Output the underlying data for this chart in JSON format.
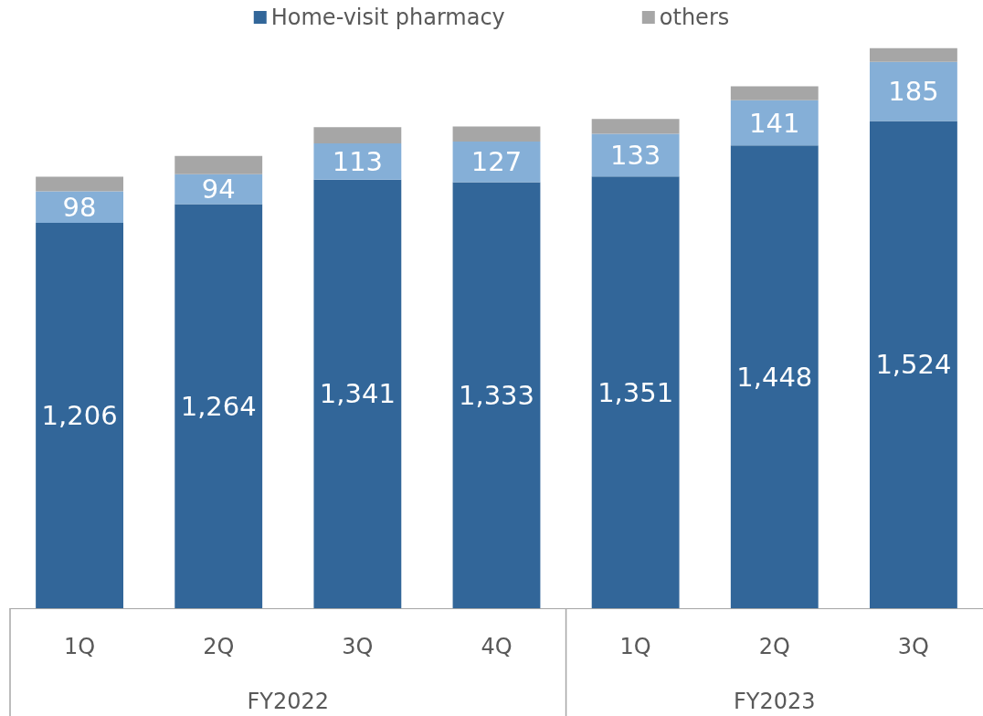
{
  "chart_data": {
    "type": "bar",
    "stacked": true,
    "categories": [
      "1Q",
      "2Q",
      "3Q",
      "4Q",
      "1Q",
      "2Q",
      "3Q"
    ],
    "series": [
      {
        "name": "Home-visit pharmacy",
        "color": "#326699",
        "values": [
          1206,
          1264,
          1341,
          1333,
          1351,
          1448,
          1524
        ],
        "value_labels": [
          "1,206",
          "1,264",
          "1,341",
          "1,333",
          "1,351",
          "1,448",
          "1,524"
        ]
      },
      {
        "color": "#85afd7",
        "values": [
          98,
          94,
          113,
          127,
          133,
          141,
          185
        ],
        "value_labels": [
          "98",
          "94",
          "113",
          "127",
          "133",
          "141",
          "185"
        ]
      },
      {
        "name": "others",
        "color": "#a6a6a6",
        "values": [
          46,
          57,
          51,
          47,
          47,
          44,
          43
        ]
      }
    ],
    "annotations": [
      "FY2022",
      "FY2023"
    ],
    "legend": "top",
    "grid": false
  }
}
